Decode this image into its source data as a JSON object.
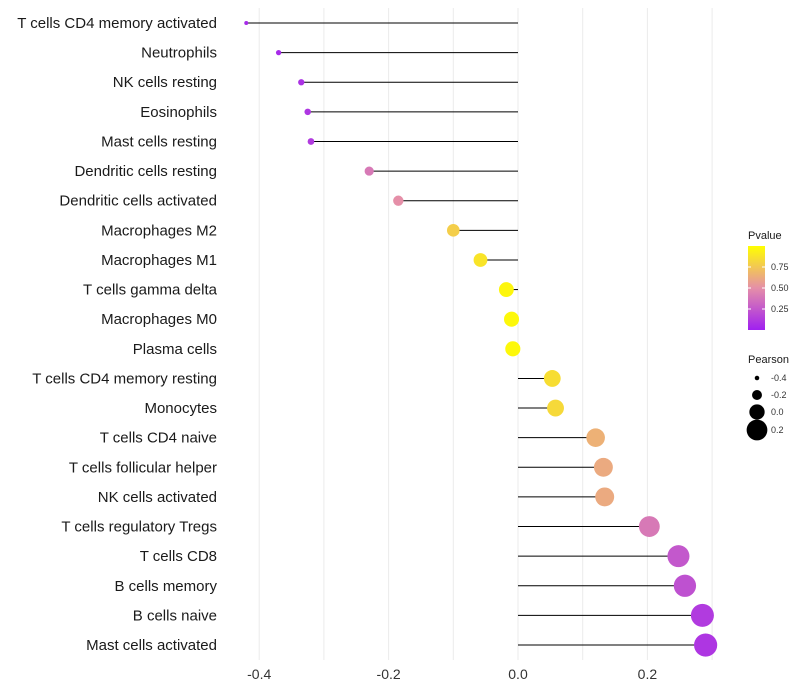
{
  "chart_data": {
    "type": "lollipop",
    "title": "",
    "xlabel": "",
    "ylabel": "",
    "xlim": [
      -0.42,
      0.3
    ],
    "xticks": [
      -0.4,
      -0.2,
      0.0,
      0.2
    ],
    "xtick_labels": [
      "-0.4",
      "-0.2",
      "0.0",
      "0.2"
    ],
    "grid": true,
    "categories": [
      "T cells CD4 memory activated",
      "Neutrophils",
      "NK cells resting",
      "Eosinophils",
      "Mast cells resting",
      "Dendritic cells resting",
      "Dendritic cells activated",
      "Macrophages M2",
      "Macrophages M1",
      "T cells gamma delta",
      "Macrophages M0",
      "Plasma cells",
      "T cells CD4 memory resting",
      "Monocytes",
      "T cells CD4 naive",
      "T cells follicular helper",
      "NK cells activated",
      "T cells regulatory  Tregs ",
      "T cells CD8",
      "B cells memory",
      "B cells naive",
      "Mast cells activated"
    ],
    "pearson": [
      -0.42,
      -0.37,
      -0.335,
      -0.325,
      -0.32,
      -0.23,
      -0.185,
      -0.1,
      -0.058,
      -0.018,
      -0.01,
      -0.008,
      0.053,
      0.058,
      0.12,
      0.132,
      0.134,
      0.203,
      0.248,
      0.258,
      0.285,
      0.29
    ],
    "pvalue": [
      0.05,
      0.05,
      0.08,
      0.1,
      0.12,
      0.4,
      0.5,
      0.78,
      0.88,
      0.96,
      0.97,
      0.97,
      0.85,
      0.83,
      0.65,
      0.62,
      0.62,
      0.4,
      0.25,
      0.22,
      0.12,
      0.1
    ],
    "legend_color": {
      "title": "Pvalue",
      "ticks": [
        0.25,
        0.5,
        0.75
      ],
      "tick_labels": [
        "0.25",
        "0.50",
        "0.75"
      ],
      "range": [
        0.0,
        1.0
      ],
      "low_color": "#A020F0",
      "mid_color": "#E58FA8",
      "high_color": "#FFFF00",
      "position": "right"
    },
    "legend_size": {
      "title": "Pearson",
      "values": [
        -0.4,
        -0.2,
        0.0,
        0.2
      ],
      "labels": [
        "-0.4",
        "-0.2",
        "0.0",
        "0.2"
      ],
      "position": "right"
    }
  }
}
